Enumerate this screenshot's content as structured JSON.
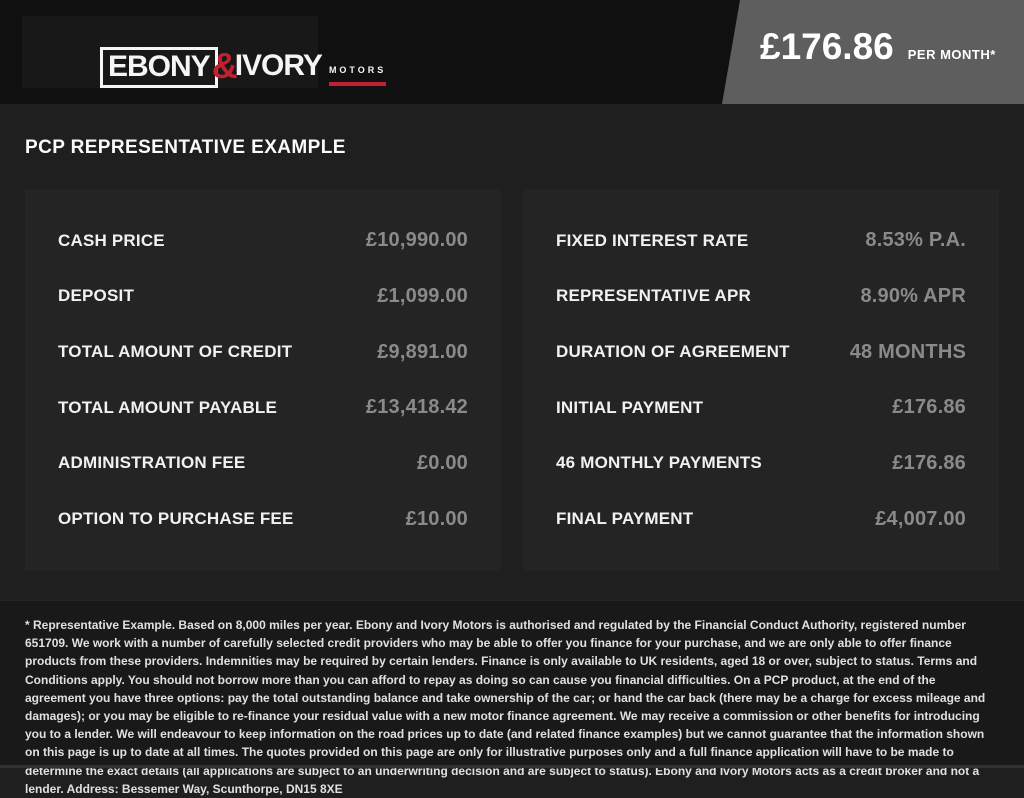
{
  "header": {
    "logo": {
      "ebony": "EBONY",
      "ampersand": "&",
      "ivory": "IVORY",
      "motors": "MOTORS"
    },
    "price": "£176.86",
    "price_suffix": "PER MONTH*"
  },
  "page": {
    "title": "PCP REPRESENTATIVE EXAMPLE"
  },
  "finance": {
    "left_rows": [
      {
        "label": "CASH PRICE",
        "value": "£10,990.00"
      },
      {
        "label": "DEPOSIT",
        "value": "£1,099.00"
      },
      {
        "label": "TOTAL AMOUNT OF CREDIT",
        "value": "£9,891.00"
      },
      {
        "label": "TOTAL AMOUNT PAYABLE",
        "value": "£13,418.42"
      },
      {
        "label": "ADMINISTRATION FEE",
        "value": "£0.00"
      },
      {
        "label": "OPTION TO PURCHASE FEE",
        "value": "£10.00"
      }
    ],
    "right_rows": [
      {
        "label": "FIXED INTEREST RATE",
        "value": "8.53% P.A."
      },
      {
        "label": "REPRESENTATIVE APR",
        "value": "8.90% APR"
      },
      {
        "label": "DURATION OF AGREEMENT",
        "value": "48 MONTHS"
      },
      {
        "label": "INITIAL PAYMENT",
        "value": "£176.86"
      },
      {
        "label": "46 MONTHLY PAYMENTS",
        "value": "£176.86"
      },
      {
        "label": "FINAL PAYMENT",
        "value": "£4,007.00"
      }
    ]
  },
  "footer": {
    "disclaimer": "* Representative Example. Based on 8,000 miles per year. Ebony and Ivory Motors is authorised and regulated by the Financial Conduct Authority, registered number 651709. We work with a number of carefully selected credit providers who may be able to offer you finance for your purchase, and we are only able to offer finance products from these providers. Indemnities may be required by certain lenders. Finance is only available to UK residents, aged 18 or over, subject to status. Terms and Conditions apply. You should not borrow more than you can afford to repay as doing so can cause you financial difficulties. On a PCP product, at the end of the agreement you have three options: pay the total outstanding balance and take ownership of the car; or hand the car back (there may be a charge for excess mileage and damages); or you may be eligible to re-finance your residual value with a new motor finance agreement. We may receive a commission or other benefits for introducing you to a lender. We will endeavour to keep information on the road prices up to date (and related finance examples) but we cannot guarantee that the information shown on this page is up to date at all times. The quotes provided on this page are only for illustrative purposes only and a full finance application will have to be made to determine the exact details (all applications are subject to an underwriting decision and are subject to status). Ebony and Ivory Motors acts as a credit broker and not a lender. Address: Bessemer Way, Scunthorpe, DN15 8XE"
  },
  "colors": {
    "page_bg": "#1f1f1f",
    "header_bg": "#101010",
    "ribbon_gray": "#5e5e5e",
    "panel_bg": "#242424",
    "accent_red": "#c1202f",
    "label_text": "#f1f1f1",
    "value_text": "#8a8a8a",
    "footer_bg": "#191919"
  }
}
